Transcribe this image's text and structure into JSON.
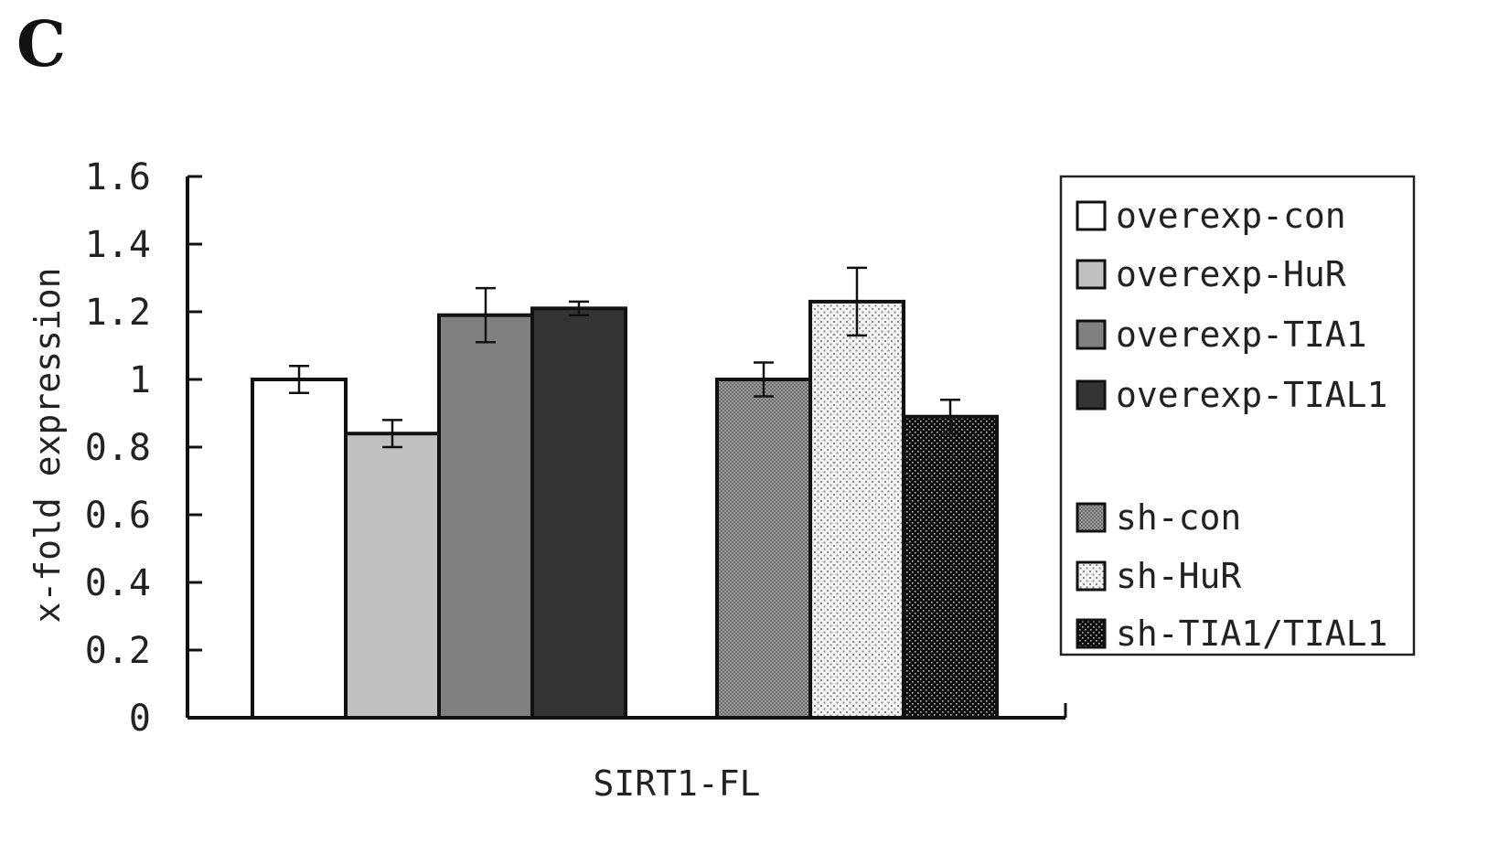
{
  "panel_label": "C",
  "chart_data": {
    "type": "bar",
    "categories": [
      "SIRT1-FL"
    ],
    "ylabel": "x-fold expression",
    "xlabel": "",
    "ylim": [
      0,
      1.6
    ],
    "yticks": [
      "0",
      "0.2",
      "0.4",
      "0.6",
      "0.8",
      "1",
      "1.2",
      "1.4",
      "1.6"
    ],
    "grid": false,
    "legend_position": "right",
    "groups": [
      {
        "series": [
          {
            "name": "overexp-con",
            "value": 1.0,
            "error": 0.04,
            "fill": "#ffffff",
            "pattern": "solid"
          },
          {
            "name": "overexp-HuR",
            "value": 0.84,
            "error": 0.04,
            "fill": "#c0c0c0",
            "pattern": "solid"
          },
          {
            "name": "overexp-TIA1",
            "value": 1.19,
            "error": 0.08,
            "fill": "#808080",
            "pattern": "solid"
          },
          {
            "name": "overexp-TIAL1",
            "value": 1.21,
            "error": 0.02,
            "fill": "#333333",
            "pattern": "solid"
          }
        ]
      },
      {
        "series": [
          {
            "name": "sh-con",
            "value": 1.0,
            "error": 0.05,
            "fill": "#8c8c8c",
            "pattern": "checker"
          },
          {
            "name": "sh-HuR",
            "value": 1.23,
            "error": 0.1,
            "fill": "#eeeeee",
            "pattern": "sparse-dots"
          },
          {
            "name": "sh-TIA1/TIAL1",
            "value": 0.89,
            "error": 0.05,
            "fill": "#111111",
            "pattern": "light-dots"
          }
        ]
      }
    ]
  }
}
